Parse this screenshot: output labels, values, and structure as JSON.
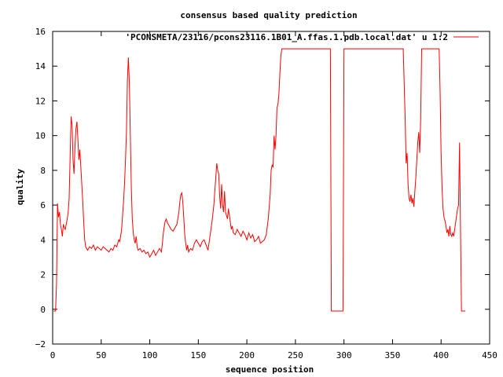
{
  "chart_data": {
    "type": "line",
    "title": "consensus based quality prediction",
    "xlabel": "sequence position",
    "ylabel": "quality",
    "xlim": [
      0,
      450
    ],
    "ylim": [
      -2,
      16
    ],
    "xticks": [
      0,
      50,
      100,
      150,
      200,
      250,
      300,
      350,
      400,
      450
    ],
    "yticks": [
      -2,
      0,
      2,
      4,
      6,
      8,
      10,
      12,
      14,
      16
    ],
    "grid": false,
    "legend_position": "top-right",
    "series": [
      {
        "name": "'PCONSMETA/23116/pcons23116.1B01_A.ffas.1.pdb.local.dat' u 1:2",
        "color": "#ff0000",
        "points": [
          [
            1,
            -0.1
          ],
          [
            2,
            -0.1
          ],
          [
            3,
            -0.1
          ],
          [
            4,
            1.5
          ],
          [
            5,
            6.1
          ],
          [
            6,
            5.3
          ],
          [
            7,
            5.6
          ],
          [
            8,
            4.9
          ],
          [
            9,
            4.6
          ],
          [
            10,
            4.2
          ],
          [
            11,
            4.9
          ],
          [
            12,
            4.7
          ],
          [
            13,
            4.6
          ],
          [
            14,
            4.9
          ],
          [
            15,
            5.2
          ],
          [
            16,
            5.6
          ],
          [
            17,
            6.4
          ],
          [
            18,
            8.8
          ],
          [
            19,
            11.1
          ],
          [
            20,
            10.6
          ],
          [
            21,
            8.6
          ],
          [
            22,
            7.8
          ],
          [
            23,
            9.4
          ],
          [
            24,
            10.4
          ],
          [
            25,
            10.8
          ],
          [
            26,
            9.8
          ],
          [
            27,
            8.6
          ],
          [
            28,
            9.2
          ],
          [
            29,
            8.2
          ],
          [
            30,
            7.2
          ],
          [
            31,
            6.2
          ],
          [
            32,
            5.0
          ],
          [
            33,
            4.0
          ],
          [
            34,
            3.6
          ],
          [
            35,
            3.5
          ],
          [
            36,
            3.4
          ],
          [
            38,
            3.6
          ],
          [
            40,
            3.5
          ],
          [
            42,
            3.7
          ],
          [
            44,
            3.4
          ],
          [
            46,
            3.6
          ],
          [
            48,
            3.5
          ],
          [
            50,
            3.4
          ],
          [
            52,
            3.6
          ],
          [
            54,
            3.5
          ],
          [
            56,
            3.4
          ],
          [
            58,
            3.3
          ],
          [
            60,
            3.5
          ],
          [
            62,
            3.4
          ],
          [
            64,
            3.7
          ],
          [
            66,
            3.6
          ],
          [
            67,
            3.8
          ],
          [
            68,
            4.0
          ],
          [
            69,
            3.9
          ],
          [
            70,
            4.2
          ],
          [
            71,
            4.6
          ],
          [
            72,
            5.4
          ],
          [
            73,
            6.2
          ],
          [
            74,
            7.2
          ],
          [
            75,
            8.6
          ],
          [
            76,
            10.2
          ],
          [
            77,
            13.2
          ],
          [
            78,
            14.5
          ],
          [
            79,
            13.0
          ],
          [
            80,
            10.0
          ],
          [
            81,
            7.0
          ],
          [
            82,
            5.2
          ],
          [
            83,
            4.4
          ],
          [
            84,
            4.0
          ],
          [
            85,
            3.8
          ],
          [
            86,
            4.2
          ],
          [
            87,
            3.6
          ],
          [
            88,
            3.4
          ],
          [
            90,
            3.5
          ],
          [
            92,
            3.3
          ],
          [
            94,
            3.4
          ],
          [
            96,
            3.2
          ],
          [
            98,
            3.3
          ],
          [
            100,
            3.0
          ],
          [
            102,
            3.2
          ],
          [
            104,
            3.4
          ],
          [
            106,
            3.1
          ],
          [
            108,
            3.3
          ],
          [
            110,
            3.5
          ],
          [
            112,
            3.3
          ],
          [
            113,
            3.8
          ],
          [
            114,
            4.4
          ],
          [
            115,
            4.8
          ],
          [
            116,
            5.1
          ],
          [
            117,
            5.2
          ],
          [
            118,
            5.0
          ],
          [
            119,
            4.9
          ],
          [
            120,
            4.8
          ],
          [
            122,
            4.6
          ],
          [
            124,
            4.5
          ],
          [
            126,
            4.7
          ],
          [
            128,
            4.9
          ],
          [
            130,
            5.6
          ],
          [
            131,
            6.2
          ],
          [
            132,
            6.6
          ],
          [
            133,
            6.7
          ],
          [
            134,
            6.2
          ],
          [
            135,
            5.3
          ],
          [
            136,
            4.3
          ],
          [
            137,
            3.8
          ],
          [
            138,
            3.4
          ],
          [
            139,
            3.7
          ],
          [
            140,
            3.3
          ],
          [
            142,
            3.5
          ],
          [
            144,
            3.4
          ],
          [
            146,
            3.8
          ],
          [
            148,
            4.0
          ],
          [
            150,
            3.8
          ],
          [
            152,
            3.6
          ],
          [
            154,
            3.9
          ],
          [
            156,
            4.0
          ],
          [
            158,
            3.7
          ],
          [
            160,
            3.4
          ],
          [
            162,
            4.2
          ],
          [
            164,
            5.0
          ],
          [
            166,
            6.0
          ],
          [
            168,
            7.6
          ],
          [
            169,
            8.4
          ],
          [
            170,
            8.0
          ],
          [
            171,
            7.8
          ],
          [
            172,
            6.5
          ],
          [
            173,
            5.8
          ],
          [
            174,
            7.2
          ],
          [
            175,
            6.0
          ],
          [
            176,
            5.6
          ],
          [
            177,
            6.8
          ],
          [
            178,
            5.6
          ],
          [
            179,
            5.4
          ],
          [
            180,
            5.2
          ],
          [
            181,
            5.8
          ],
          [
            182,
            5.4
          ],
          [
            183,
            5.0
          ],
          [
            184,
            4.6
          ],
          [
            185,
            4.8
          ],
          [
            186,
            4.4
          ],
          [
            188,
            4.3
          ],
          [
            190,
            4.6
          ],
          [
            192,
            4.4
          ],
          [
            194,
            4.2
          ],
          [
            196,
            4.5
          ],
          [
            198,
            4.3
          ],
          [
            200,
            4.0
          ],
          [
            202,
            4.4
          ],
          [
            204,
            4.1
          ],
          [
            206,
            4.3
          ],
          [
            208,
            3.9
          ],
          [
            210,
            4.0
          ],
          [
            212,
            4.2
          ],
          [
            214,
            3.8
          ],
          [
            216,
            3.9
          ],
          [
            218,
            4.0
          ],
          [
            220,
            4.3
          ],
          [
            222,
            5.2
          ],
          [
            224,
            6.6
          ],
          [
            225,
            8.0
          ],
          [
            226,
            8.3
          ],
          [
            227,
            8.2
          ],
          [
            228,
            10.0
          ],
          [
            229,
            9.2
          ],
          [
            230,
            10.0
          ],
          [
            231,
            11.6
          ],
          [
            232,
            11.8
          ],
          [
            233,
            12.4
          ],
          [
            234,
            13.6
          ],
          [
            235,
            14.6
          ],
          [
            236,
            15.0
          ],
          [
            240,
            15.0
          ],
          [
            250,
            15.0
          ],
          [
            260,
            15.0
          ],
          [
            270,
            15.0
          ],
          [
            280,
            15.0
          ],
          [
            286,
            15.0
          ],
          [
            287,
            -0.1
          ],
          [
            290,
            -0.1
          ],
          [
            295,
            -0.1
          ],
          [
            299,
            -0.1
          ],
          [
            300,
            15.0
          ],
          [
            310,
            15.0
          ],
          [
            320,
            15.0
          ],
          [
            330,
            15.0
          ],
          [
            340,
            15.0
          ],
          [
            350,
            15.0
          ],
          [
            361,
            15.0
          ],
          [
            362,
            13.0
          ],
          [
            363,
            11.0
          ],
          [
            364,
            8.4
          ],
          [
            365,
            9.0
          ],
          [
            366,
            7.2
          ],
          [
            367,
            6.4
          ],
          [
            368,
            6.2
          ],
          [
            369,
            6.6
          ],
          [
            370,
            6.1
          ],
          [
            371,
            6.4
          ],
          [
            372,
            5.9
          ],
          [
            373,
            6.8
          ],
          [
            374,
            7.6
          ],
          [
            375,
            8.6
          ],
          [
            376,
            9.6
          ],
          [
            377,
            10.2
          ],
          [
            378,
            9.0
          ],
          [
            379,
            11.0
          ],
          [
            380,
            15.0
          ],
          [
            390,
            15.0
          ],
          [
            398,
            15.0
          ],
          [
            399,
            12.5
          ],
          [
            400,
            9.0
          ],
          [
            401,
            7.0
          ],
          [
            402,
            5.8
          ],
          [
            403,
            5.3
          ],
          [
            404,
            5.1
          ],
          [
            405,
            4.8
          ],
          [
            406,
            4.4
          ],
          [
            407,
            4.6
          ],
          [
            408,
            4.2
          ],
          [
            409,
            4.8
          ],
          [
            410,
            4.3
          ],
          [
            411,
            4.2
          ],
          [
            412,
            4.4
          ],
          [
            413,
            4.2
          ],
          [
            414,
            4.6
          ],
          [
            415,
            5.0
          ],
          [
            416,
            5.4
          ],
          [
            417,
            5.8
          ],
          [
            418,
            6.0
          ],
          [
            419,
            9.6
          ],
          [
            420,
            4.6
          ],
          [
            421,
            -0.1
          ],
          [
            422,
            -0.1
          ],
          [
            425,
            -0.1
          ]
        ]
      }
    ]
  }
}
